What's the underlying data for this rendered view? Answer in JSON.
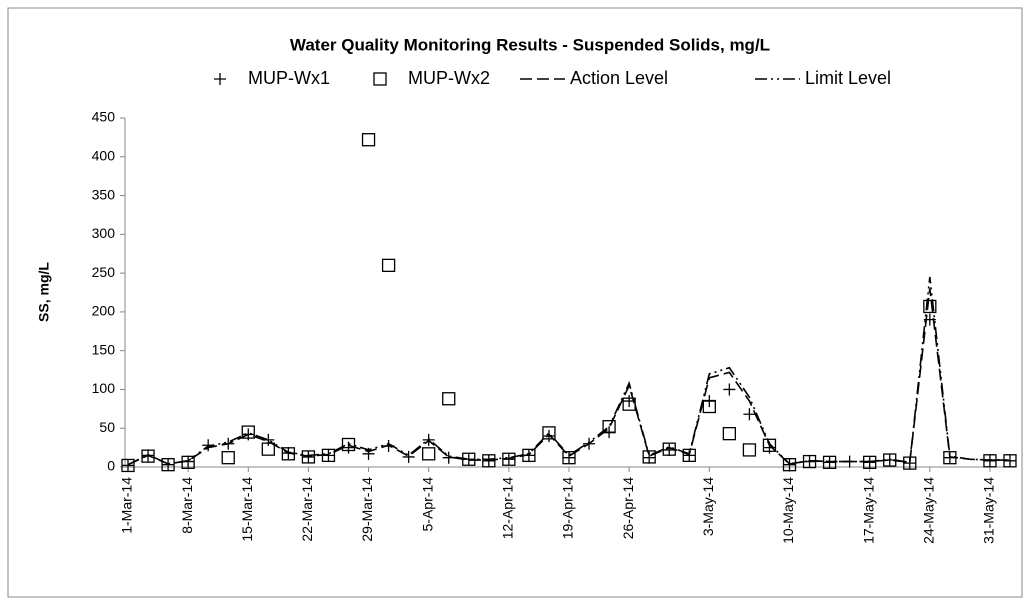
{
  "chart_data": {
    "type": "line",
    "title": "Water Quality Monitoring Results - Suspended Solids, mg/L",
    "y_label": "SS, mg/L",
    "categories": [
      "1-Mar-14",
      null,
      null,
      "8-Mar-14",
      null,
      null,
      "15-Mar-14",
      null,
      null,
      "22-Mar-14",
      null,
      null,
      "29-Mar-14",
      null,
      null,
      "5-Apr-14",
      null,
      null,
      null,
      "12-Apr-14",
      null,
      null,
      "19-Apr-14",
      null,
      null,
      "26-Apr-14",
      null,
      null,
      null,
      "3-May-14",
      null,
      null,
      null,
      "10-May-14",
      null,
      null,
      null,
      "17-May-14",
      null,
      null,
      "24-May-14",
      null,
      null,
      "31-May-14",
      null
    ],
    "series": [
      {
        "name": "MUP-Wx1",
        "marker": "plus",
        "color": "#000000",
        "values": [
          2,
          15,
          3,
          7,
          28,
          30,
          42,
          35,
          18,
          13,
          15,
          25,
          17,
          27,
          13,
          35,
          12,
          10,
          8,
          10,
          15,
          40,
          12,
          30,
          45,
          85,
          12,
          22,
          15,
          85,
          100,
          68,
          25,
          3,
          7,
          6,
          7,
          6,
          9,
          5,
          190,
          12,
          null,
          8,
          8
        ]
      },
      {
        "name": "MUP-Wx2",
        "marker": "square",
        "color": "#000000",
        "values": [
          2,
          14,
          3,
          6,
          null,
          12,
          45,
          23,
          17,
          13,
          15,
          29,
          422,
          260,
          null,
          17,
          88,
          10,
          8,
          10,
          15,
          44,
          12,
          null,
          52,
          81,
          13,
          23,
          15,
          78,
          43,
          22,
          28,
          3,
          7,
          6,
          null,
          6,
          9,
          5,
          207,
          12,
          null,
          8,
          8
        ]
      },
      {
        "name": "Action Level",
        "line": "dash",
        "color": "#000000",
        "values": [
          3,
          15,
          4,
          8,
          25,
          30,
          42,
          33,
          18,
          14,
          16,
          28,
          20,
          28,
          14,
          34,
          13,
          9,
          9,
          11,
          16,
          42,
          14,
          30,
          50,
          105,
          14,
          25,
          16,
          115,
          122,
          85,
          28,
          4,
          8,
          7,
          7,
          7,
          9,
          6,
          230,
          13,
          10,
          9,
          9
        ]
      },
      {
        "name": "Limit Level",
        "line": "dashdot",
        "color": "#000000",
        "values": [
          3,
          16,
          4,
          8,
          27,
          32,
          44,
          35,
          19,
          15,
          17,
          30,
          22,
          30,
          15,
          36,
          14,
          10,
          10,
          12,
          17,
          44,
          15,
          32,
          52,
          108,
          15,
          26,
          17,
          120,
          128,
          90,
          30,
          4,
          8,
          7,
          7,
          7,
          10,
          6,
          245,
          14,
          10,
          9,
          9
        ]
      }
    ],
    "ylim": [
      0,
      450
    ],
    "yticks": [
      0,
      50,
      100,
      150,
      200,
      250,
      300,
      350,
      400,
      450
    ]
  }
}
